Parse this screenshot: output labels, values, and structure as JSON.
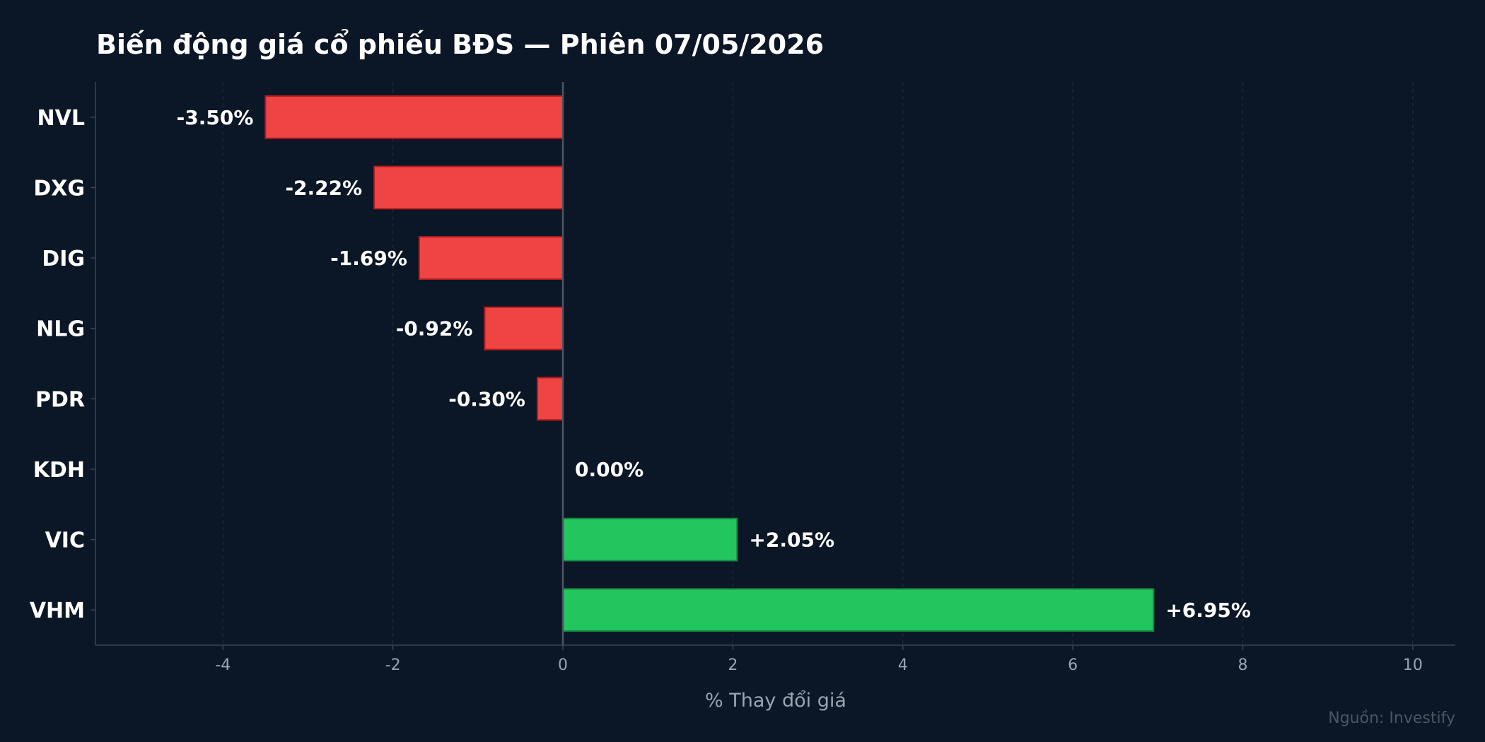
{
  "chart_data": {
    "type": "bar",
    "orientation": "horizontal",
    "title": "Biến động giá cổ phiếu BĐS — Phiên 07/05/2026",
    "xlabel": "% Thay đổi giá",
    "ylabel": "",
    "source": "Nguồn: Investify",
    "categories": [
      "NVL",
      "DXG",
      "DIG",
      "NLG",
      "PDR",
      "KDH",
      "VIC",
      "VHM"
    ],
    "values": [
      -3.5,
      -2.22,
      -1.69,
      -0.92,
      -0.3,
      0.0,
      2.05,
      6.95
    ],
    "value_labels": [
      "-3.50%",
      "-2.22%",
      "-1.69%",
      "-0.92%",
      "-0.30%",
      "0.00%",
      "+2.05%",
      "+6.95%"
    ],
    "xlim": [
      -5.5,
      10.5
    ],
    "xticks": [
      -4,
      -2,
      0,
      2,
      4,
      6,
      8,
      10
    ],
    "xtick_labels": [
      "-4",
      "-2",
      "0",
      "2",
      "4",
      "6",
      "8",
      "10"
    ],
    "grid": "vertical dashed",
    "legend": "none",
    "colors": {
      "background": "#0b1626",
      "negative": "#ef4444",
      "negative_edge": "#b91c1c",
      "positive": "#22c55e",
      "positive_edge": "#15803d",
      "text": "#ffffff",
      "muted_text": "#9aa4b2",
      "grid": "#1e2d40",
      "axis": "#3a4556",
      "zero_line": "#4b5563"
    }
  }
}
